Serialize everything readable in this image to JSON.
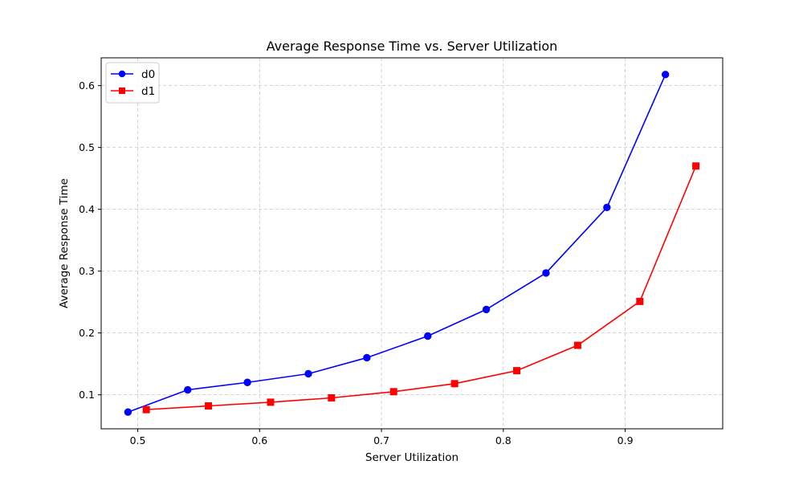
{
  "chart_data": {
    "type": "line",
    "title": "Average Response Time vs. Server Utilization",
    "xlabel": "Server Utilization",
    "ylabel": "Average Response Time",
    "xlim": [
      0.47,
      0.98
    ],
    "ylim": [
      0.045,
      0.645
    ],
    "xticks": [
      0.5,
      0.6,
      0.7,
      0.8,
      0.9
    ],
    "xtick_labels": [
      "0.5",
      "0.6",
      "0.7",
      "0.8",
      "0.9"
    ],
    "yticks": [
      0.1,
      0.2,
      0.3,
      0.4,
      0.5,
      0.6
    ],
    "ytick_labels": [
      "0.1",
      "0.2",
      "0.3",
      "0.4",
      "0.5",
      "0.6"
    ],
    "grid": true,
    "legend_position": "top-left",
    "series": [
      {
        "name": "d0",
        "color": "#0000ff",
        "marker": "circle",
        "x": [
          0.492,
          0.541,
          0.59,
          0.64,
          0.688,
          0.738,
          0.786,
          0.835,
          0.885,
          0.933
        ],
        "y": [
          0.072,
          0.108,
          0.12,
          0.134,
          0.16,
          0.195,
          0.238,
          0.297,
          0.403,
          0.618
        ]
      },
      {
        "name": "d1",
        "color": "#ff0000",
        "marker": "square",
        "x": [
          0.507,
          0.558,
          0.609,
          0.659,
          0.71,
          0.76,
          0.811,
          0.861,
          0.912,
          0.958
        ],
        "y": [
          0.076,
          0.082,
          0.088,
          0.095,
          0.105,
          0.118,
          0.139,
          0.18,
          0.251,
          0.47
        ]
      }
    ]
  }
}
